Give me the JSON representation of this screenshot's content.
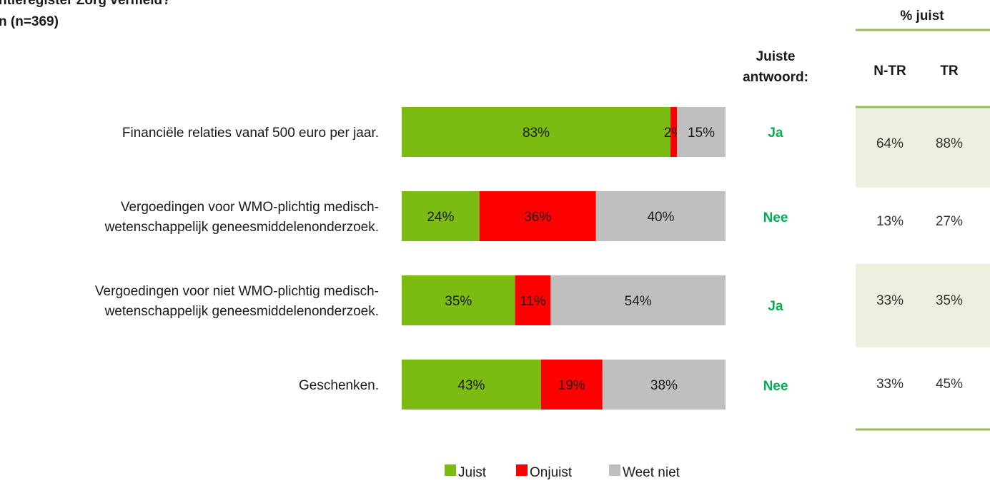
{
  "chart_data": {
    "type": "bar",
    "orientation": "horizontal",
    "stacked": true,
    "title": [
      "ntieregister Zorg vermeld?",
      "n (n=369)"
    ],
    "categories": [
      [
        "Financiële relaties vanaf 500 euro per jaar."
      ],
      [
        "Vergoedingen voor WMO-plichtig  medisch-",
        "wetenschappelijk geneesmiddelenonderzoek."
      ],
      [
        "Vergoedingen voor niet WMO-plichtig  medisch-",
        "wetenschappelijk geneesmiddelenonderzoek."
      ],
      [
        "Geschenken."
      ]
    ],
    "series": [
      {
        "name": "Juist",
        "color": "#7cbb12",
        "values": [
          83,
          24,
          35,
          43
        ],
        "value_labels": [
          "83%",
          "24%",
          "35%",
          "43%"
        ]
      },
      {
        "name": "Onjuist",
        "color": "#ff0000",
        "values": [
          2,
          36,
          11,
          19
        ],
        "value_labels": [
          "2%",
          "36%",
          "11%",
          "19%"
        ]
      },
      {
        "name": "Weet  niet",
        "color": "#bfbfbf",
        "values": [
          15,
          40,
          54,
          38
        ],
        "value_labels": [
          "15%",
          "40%",
          "54%",
          "38%"
        ]
      }
    ],
    "xlim": [
      0,
      100
    ]
  },
  "table": {
    "answer_header": [
      "Juiste",
      "antwoord:"
    ],
    "group_header": "% juist",
    "columns": [
      "N-TR",
      "TR"
    ],
    "answers": [
      "Ja",
      "Nee",
      "Ja",
      "Nee"
    ],
    "rows": [
      [
        "64%",
        "88%"
      ],
      [
        "13%",
        "27%"
      ],
      [
        "33%",
        "35%"
      ],
      [
        "33%",
        "45%"
      ]
    ]
  }
}
